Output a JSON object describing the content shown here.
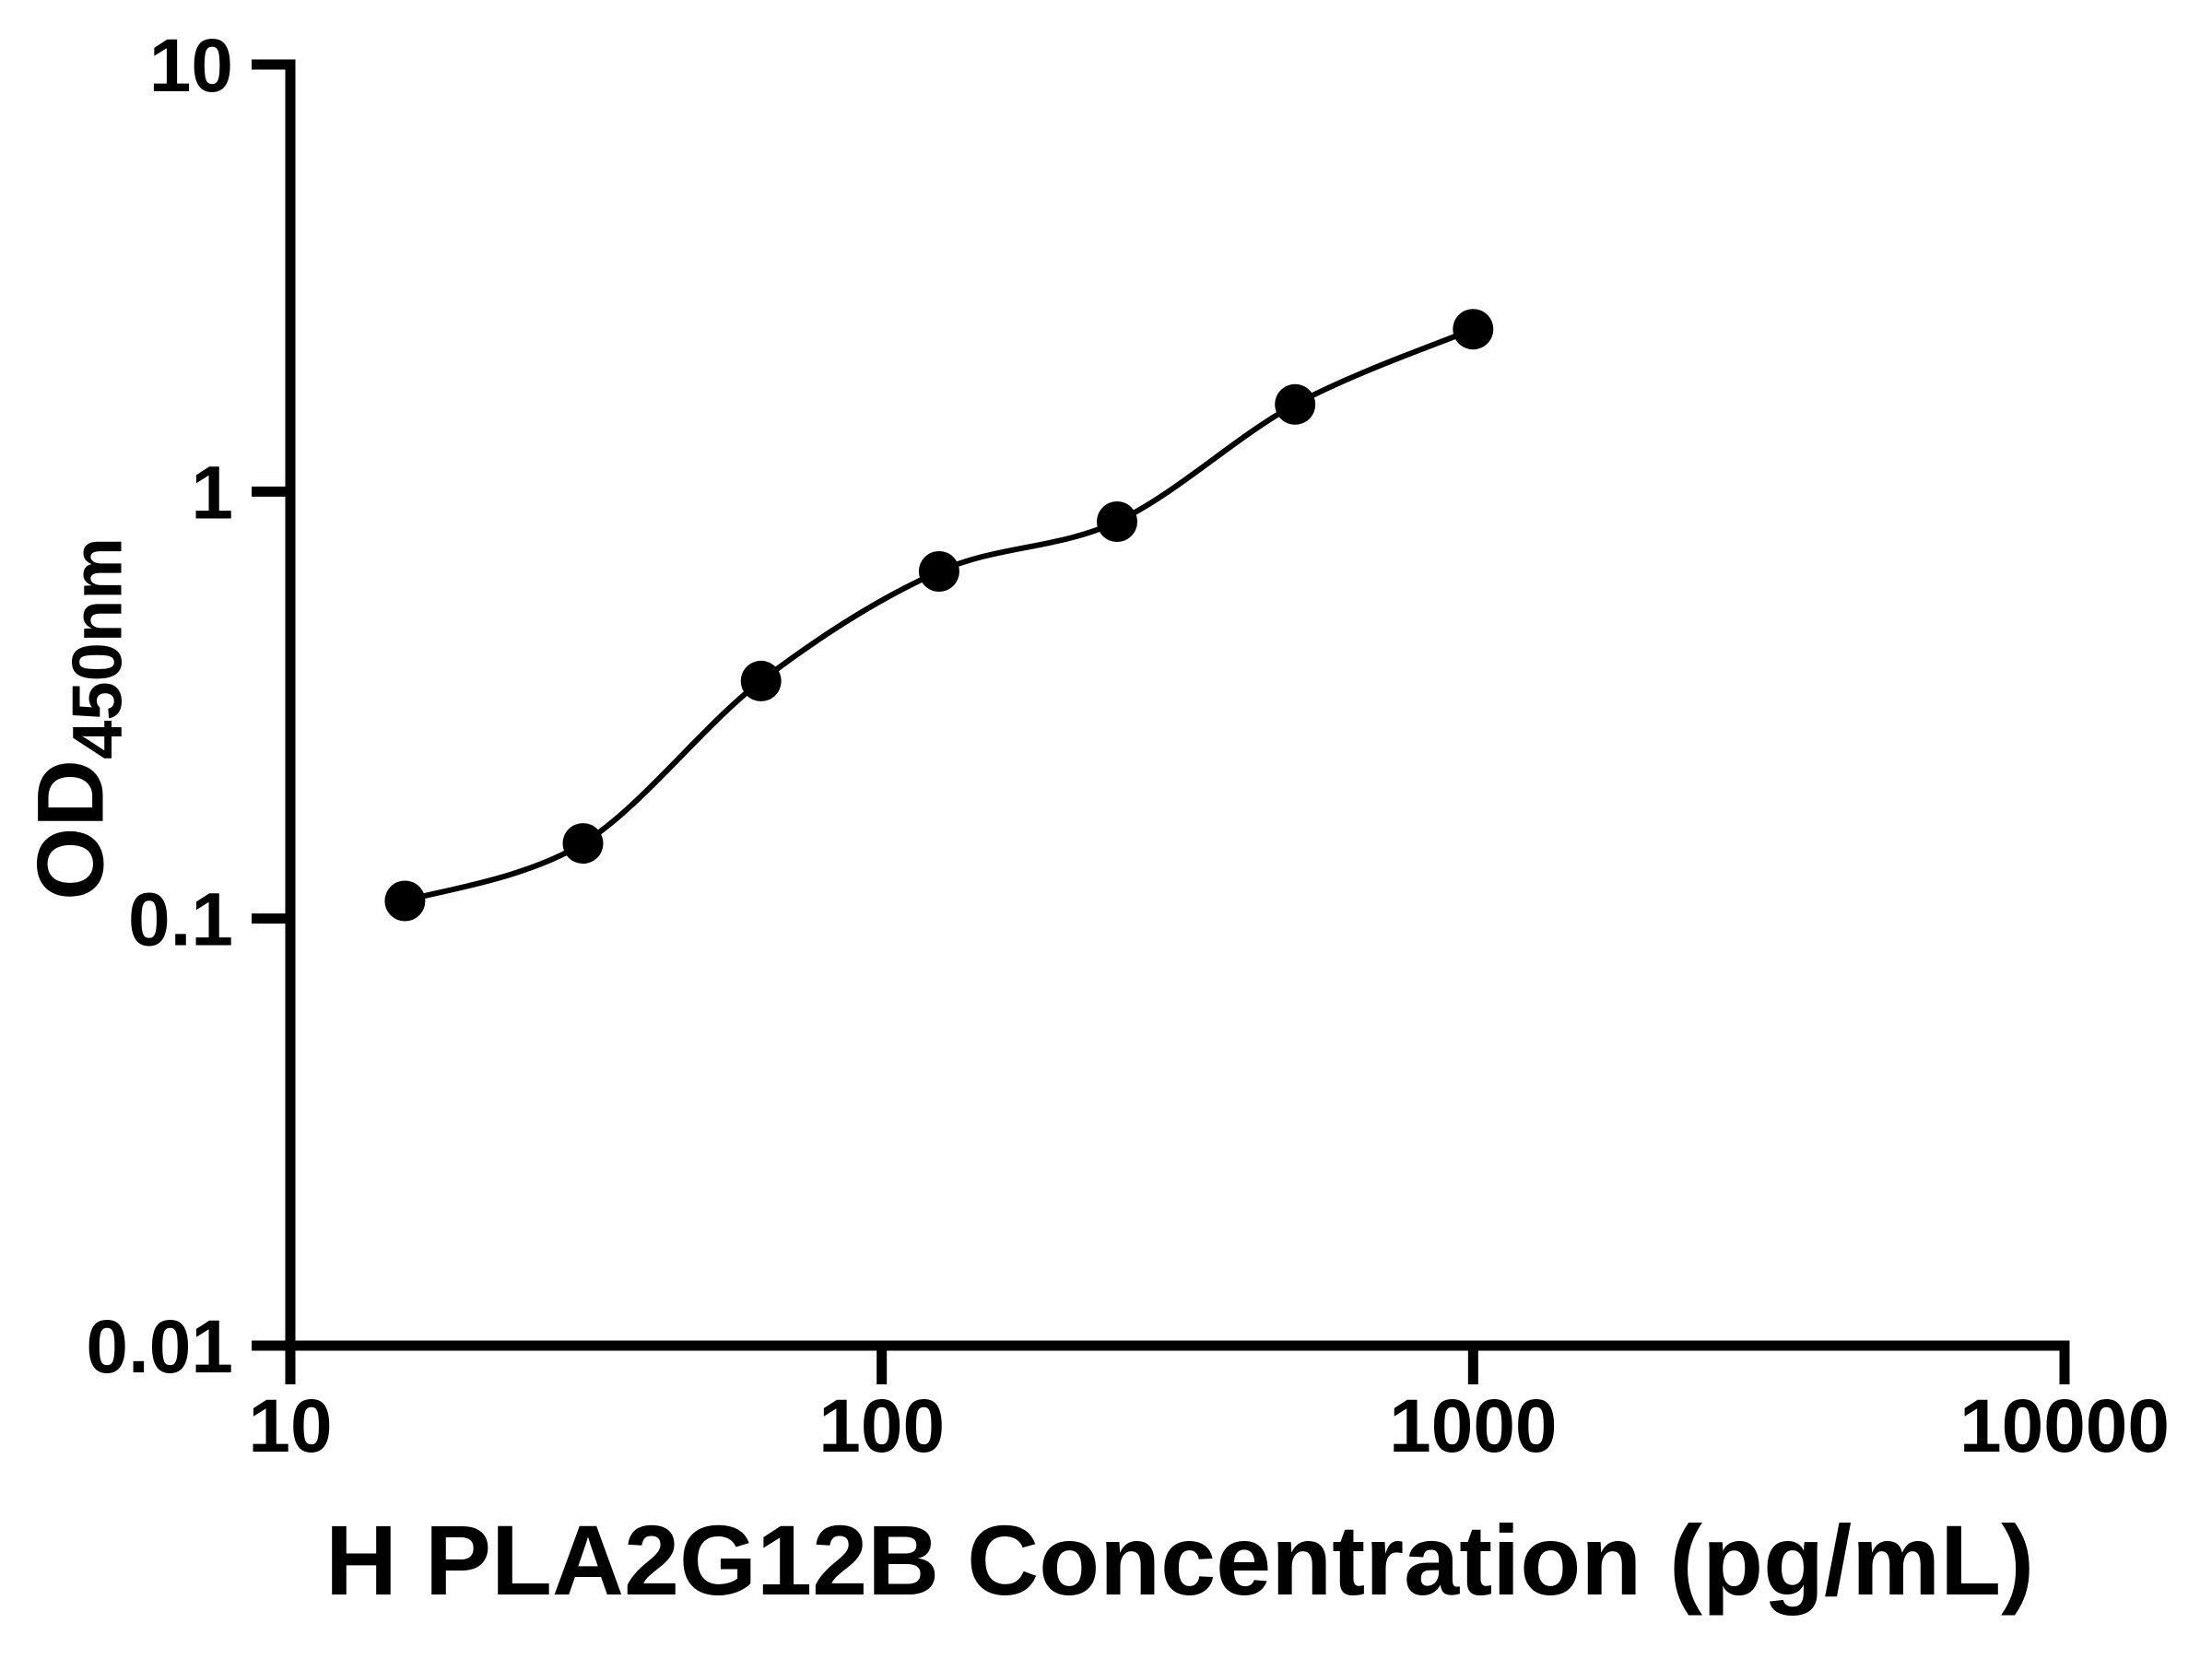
{
  "chart_data": {
    "type": "scatter",
    "subtype": "elisa-standard-curve-with-fit-line",
    "x": [
      15.625,
      31.25,
      62.5,
      125,
      250,
      500,
      1000
    ],
    "y": [
      0.11,
      0.15,
      0.36,
      0.65,
      0.85,
      1.6,
      2.4
    ],
    "xlabel": "H PLA2G12B Concentration (pg/mL)",
    "ylabel": "OD450nm",
    "ylabel_main": "OD",
    "ylabel_sub": "450nm",
    "x_scale": "log",
    "y_scale": "log",
    "xlim": [
      10,
      10000
    ],
    "ylim": [
      0.01,
      10
    ],
    "x_ticks": [
      10,
      100,
      1000,
      10000
    ],
    "y_ticks": [
      10,
      1,
      0.1,
      0.01
    ],
    "x_tick_labels": [
      "10",
      "100",
      "1000",
      "10000"
    ],
    "y_tick_labels": [
      "10",
      "1",
      "0.1",
      "0.01"
    ],
    "grid": false,
    "legend": "none",
    "marker": "filled-circle",
    "marker_color": "#000000",
    "line_color": "#000000",
    "axis_color": "#000000",
    "background_color": "#ffffff"
  }
}
